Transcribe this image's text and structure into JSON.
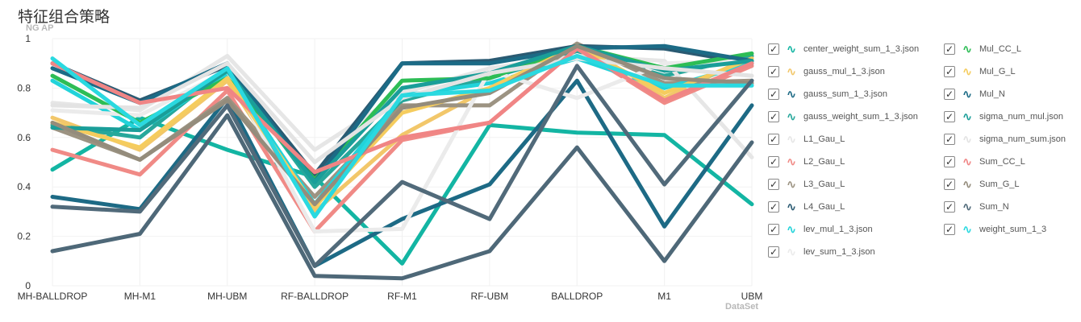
{
  "title": "特征组合策略",
  "chart_data": {
    "type": "line",
    "ylabel": "NG AP",
    "xlabel": "DataSet",
    "ylim": [
      0,
      1
    ],
    "yticks": [
      "0",
      "0.2",
      "0.4",
      "0.6",
      "0.8",
      "1"
    ],
    "categories": [
      "MH-BALLDROP",
      "MH-M1",
      "MH-UBM",
      "RF-BALLDROP",
      "RF-M1",
      "RF-UBM",
      "BALLDROP",
      "M1",
      "UBM"
    ],
    "grid": true,
    "legend_position": "right",
    "series": [
      {
        "name": "center_weight_sum_1_3.json",
        "color": "#13b5a3",
        "values": [
          0.47,
          0.68,
          0.55,
          0.44,
          0.09,
          0.65,
          0.62,
          0.61,
          0.33
        ]
      },
      {
        "name": "gauss_mul_1_3.json",
        "color": "#f2c76a",
        "values": [
          0.68,
          0.55,
          0.83,
          0.3,
          0.61,
          0.8,
          0.97,
          0.76,
          0.93
        ]
      },
      {
        "name": "gauss_sum_1_3.json",
        "color": "#1d6a85",
        "values": [
          0.36,
          0.31,
          0.76,
          0.08,
          0.27,
          0.41,
          0.83,
          0.24,
          0.73
        ]
      },
      {
        "name": "gauss_weight_sum_1_3.json",
        "color": "#27a79b",
        "values": [
          0.65,
          0.6,
          0.88,
          0.4,
          0.75,
          0.84,
          0.95,
          0.85,
          0.93
        ]
      },
      {
        "name": "L1_Gau_L",
        "color": "#e6e6e6",
        "values": [
          0.74,
          0.71,
          0.93,
          0.55,
          0.78,
          0.88,
          0.93,
          0.91,
          0.52
        ]
      },
      {
        "name": "L2_Gau_L",
        "color": "#f08a86",
        "values": [
          0.55,
          0.45,
          0.79,
          0.22,
          0.59,
          0.66,
          0.96,
          0.74,
          0.89
        ]
      },
      {
        "name": "L3_Gau_L",
        "color": "#9c9382",
        "values": [
          0.64,
          0.51,
          0.76,
          0.36,
          0.73,
          0.73,
          0.98,
          0.82,
          0.83
        ]
      },
      {
        "name": "L4_Gau_L",
        "color": "#2a5a72",
        "values": [
          0.9,
          0.75,
          0.89,
          0.45,
          0.9,
          0.91,
          0.97,
          0.96,
          0.9
        ]
      },
      {
        "name": "lev_mul_1_3.json",
        "color": "#22d3da",
        "values": [
          0.83,
          0.63,
          0.86,
          0.33,
          0.77,
          0.82,
          0.92,
          0.8,
          0.9
        ]
      },
      {
        "name": "lev_sum_1_3.json",
        "color": "#ebebeb",
        "values": [
          0.71,
          0.69,
          0.87,
          0.22,
          0.23,
          0.87,
          0.76,
          0.9,
          0.91
        ]
      },
      {
        "name": "Mul_CC_L",
        "color": "#2dbd55",
        "values": [
          0.85,
          0.66,
          0.84,
          0.43,
          0.83,
          0.84,
          0.97,
          0.88,
          0.94
        ]
      },
      {
        "name": "Mul_G_L",
        "color": "#f5cc5e",
        "values": [
          0.66,
          0.56,
          0.84,
          0.32,
          0.7,
          0.8,
          0.97,
          0.78,
          0.92
        ]
      },
      {
        "name": "Mul_N",
        "color": "#1c6b86",
        "values": [
          0.88,
          0.74,
          0.9,
          0.42,
          0.9,
          0.9,
          0.96,
          0.97,
          0.91
        ]
      },
      {
        "name": "sigma_num_mul.json",
        "color": "#1a9e99",
        "values": [
          0.64,
          0.63,
          0.87,
          0.42,
          0.8,
          0.86,
          0.97,
          0.87,
          0.91
        ]
      },
      {
        "name": "sigma_num_sum.json",
        "color": "#e3e3e3",
        "values": [
          0.73,
          0.72,
          0.9,
          0.5,
          0.76,
          0.86,
          0.92,
          0.88,
          0.85
        ]
      },
      {
        "name": "Sum_CC_L",
        "color": "#f08585",
        "values": [
          0.9,
          0.74,
          0.8,
          0.46,
          0.6,
          0.66,
          0.96,
          0.75,
          0.9
        ]
      },
      {
        "name": "Sum_G_L",
        "color": "#948c7c",
        "values": [
          0.66,
          0.51,
          0.75,
          0.33,
          0.72,
          0.78,
          0.97,
          0.84,
          0.82
        ]
      },
      {
        "name": "Sum_N",
        "color": "#4e6878",
        "values": [
          0.14,
          0.21,
          0.69,
          0.04,
          0.03,
          0.14,
          0.56,
          0.1,
          0.58
        ]
      },
      {
        "name": "weight_sum_1_3",
        "color": "#2ad9e0",
        "values": [
          0.92,
          0.65,
          0.88,
          0.28,
          0.77,
          0.79,
          0.93,
          0.81,
          0.81
        ]
      },
      {
        "name": "",
        "color": "#516a7a",
        "values": [
          0.32,
          0.3,
          0.73,
          0.08,
          0.42,
          0.27,
          0.89,
          0.41,
          0.83
        ]
      }
    ]
  }
}
